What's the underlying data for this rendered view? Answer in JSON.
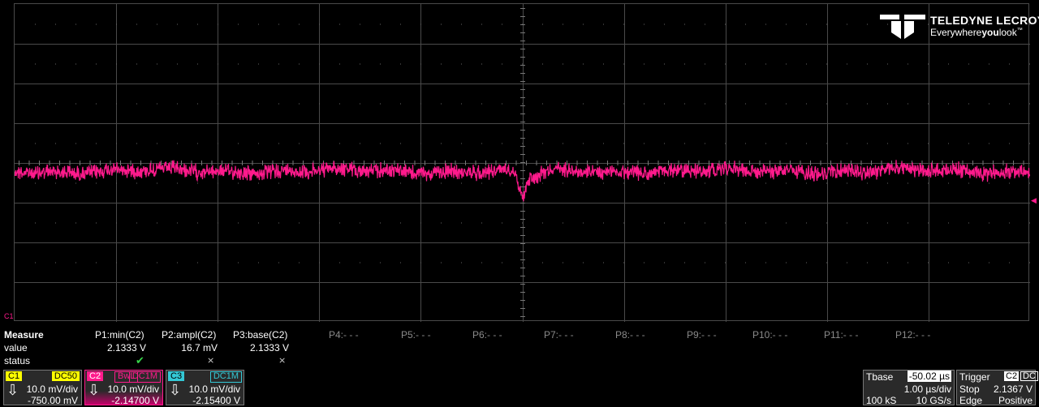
{
  "logo": {
    "brand": "TELEDYNE LECROY",
    "tagline_pre": "Everywhere",
    "tagline_bold": "you",
    "tagline_post": "look",
    "tm": "™"
  },
  "colors": {
    "ch1": "#ffff00",
    "ch2": "#ff1a8c",
    "ch3": "#34c9d6",
    "grid": "#4a4a4a",
    "check": "#37d64a"
  },
  "grid": {
    "h_divs": 10,
    "v_divs": 8
  },
  "channel_marker": {
    "label": "C1"
  },
  "measure": {
    "row_labels": [
      "Measure",
      "value",
      "status"
    ],
    "params": [
      {
        "name": "P1:min(C2)",
        "value": "2.1333 V",
        "status": "check"
      },
      {
        "name": "P2:ampl(C2)",
        "value": "16.7 mV",
        "status": "x"
      },
      {
        "name": "P3:base(C2)",
        "value": "2.1333 V",
        "status": "x"
      },
      {
        "name": "P4:- - -"
      },
      {
        "name": "P5:- - -"
      },
      {
        "name": "P6:- - -"
      },
      {
        "name": "P7:- - -"
      },
      {
        "name": "P8:- - -"
      },
      {
        "name": "P9:- - -"
      },
      {
        "name": "P10:- - -"
      },
      {
        "name": "P11:- - -"
      },
      {
        "name": "P12:- - -"
      }
    ]
  },
  "channels": [
    {
      "id": "C1",
      "coupling": "DC50",
      "bwl": "",
      "vdiv": "10.0 mV/div",
      "offset": "-750.00 mV"
    },
    {
      "id": "C2",
      "coupling": "DC1M",
      "bwl": "BwL",
      "vdiv": "10.0 mV/div",
      "offset": "-2.14700 V"
    },
    {
      "id": "C3",
      "coupling": "DC1M",
      "bwl": "",
      "vdiv": "10.0 mV/div",
      "offset": "-2.15400 V"
    }
  ],
  "timebase": {
    "label": "Tbase",
    "delay": "-50.02 µs",
    "tdiv": "1.00 µs/div",
    "samples": "100 kS",
    "rate": "10 GS/s"
  },
  "trigger": {
    "label": "Trigger",
    "source": "C2",
    "coupling": "DC",
    "mode": "Stop",
    "level": "2.1367 V",
    "type": "Edge",
    "slope": "Positive"
  }
}
